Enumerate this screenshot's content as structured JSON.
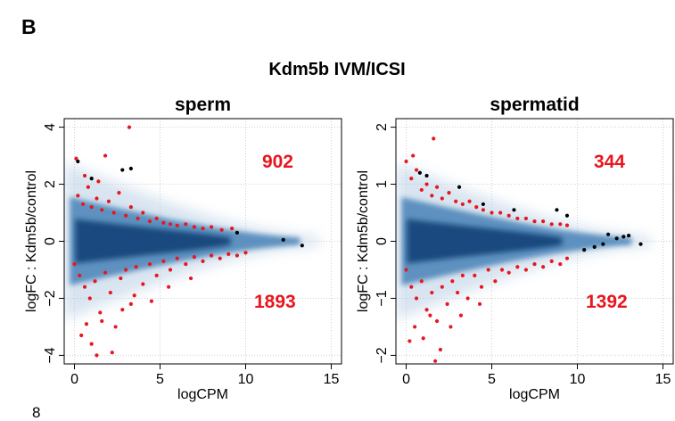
{
  "panel_label": "B",
  "title": "Kdm5b IVM/ICSI",
  "footer": "8",
  "chart_data": [
    {
      "type": "scatter",
      "title": "sperm",
      "xlabel": "logCPM",
      "ylabel": "logFC : Kdm5b/control",
      "xlim": [
        -0.6,
        15.6
      ],
      "ylim": [
        -4.3,
        4.3
      ],
      "xticks": [
        0,
        5,
        10,
        15
      ],
      "yticks": [
        {
          "value": -4,
          "label": "−4"
        },
        {
          "value": -2,
          "label": "−2"
        },
        0,
        2,
        4
      ],
      "grid": true,
      "annotations": [
        902,
        1893
      ],
      "annotation_color": "#e8161f",
      "series": [
        {
          "color": "#e8161f",
          "x": [
            0.2,
            0.5,
            0.8,
            1.0,
            1.3,
            1.6,
            2.0,
            2.3,
            2.6,
            3.0,
            3.3,
            3.7,
            4.0,
            4.4,
            4.8,
            5.2,
            5.6,
            6.0,
            6.5,
            7.0,
            7.5,
            8.0,
            8.6,
            9.2,
            0.1,
            1.8,
            3.2,
            0.6,
            1.4
          ],
          "y": [
            1.6,
            1.3,
            1.9,
            1.2,
            1.5,
            1.1,
            1.4,
            1.0,
            1.7,
            0.9,
            1.2,
            0.8,
            1.0,
            0.7,
            0.8,
            0.65,
            0.6,
            0.55,
            0.6,
            0.5,
            0.45,
            0.5,
            0.4,
            0.45,
            2.9,
            3.0,
            4.0,
            2.3,
            2.1
          ]
        },
        {
          "color": "#e8161f",
          "x": [
            0.0,
            0.3,
            0.6,
            0.9,
            1.2,
            1.5,
            1.8,
            2.1,
            2.4,
            2.7,
            3.0,
            3.3,
            3.6,
            4.0,
            4.4,
            4.8,
            5.2,
            5.6,
            6.0,
            6.5,
            7.0,
            7.5,
            8.0,
            8.5,
            9.0,
            9.5,
            10.0,
            0.4,
            1.0,
            1.6,
            2.2,
            2.8,
            1.3,
            0.7,
            3.5,
            4.5,
            5.5,
            6.8
          ],
          "y": [
            -0.8,
            -1.2,
            -1.6,
            -2.0,
            -1.4,
            -2.5,
            -1.1,
            -1.8,
            -3.0,
            -1.3,
            -1.0,
            -2.2,
            -0.9,
            -1.5,
            -0.8,
            -1.2,
            -0.7,
            -1.0,
            -0.6,
            -0.8,
            -0.55,
            -0.7,
            -0.5,
            -0.6,
            -0.45,
            -0.5,
            -0.4,
            -3.3,
            -3.6,
            -2.8,
            -3.9,
            -2.4,
            -4.0,
            -2.9,
            -1.9,
            -2.1,
            -1.6,
            -1.3
          ]
        },
        {
          "color": "#000000",
          "x": [
            0.2,
            1.0,
            2.8,
            3.3,
            12.2,
            13.3,
            9.5
          ],
          "y": [
            2.8,
            2.2,
            2.5,
            2.55,
            0.05,
            -0.15,
            0.3
          ]
        }
      ]
    },
    {
      "type": "scatter",
      "title": "spermatid",
      "xlabel": "logCPM",
      "ylabel": "logFC : Kdm5b/control",
      "xlim": [
        -0.6,
        15.6
      ],
      "ylim": [
        -2.15,
        2.15
      ],
      "xticks": [
        0,
        5,
        10,
        15
      ],
      "yticks": [
        {
          "value": -2,
          "label": "−2"
        },
        {
          "value": -1,
          "label": "−1"
        },
        0,
        1,
        2
      ],
      "grid": true,
      "annotations": [
        344,
        1392
      ],
      "annotation_color": "#e8161f",
      "series": [
        {
          "color": "#e8161f",
          "x": [
            0.0,
            0.3,
            0.6,
            0.9,
            1.2,
            1.5,
            1.8,
            2.1,
            2.5,
            2.9,
            3.3,
            3.7,
            4.1,
            4.5,
            5.0,
            5.5,
            6.0,
            6.5,
            7.0,
            7.5,
            8.0,
            8.5,
            9.0,
            9.4,
            1.6,
            0.4
          ],
          "y": [
            1.4,
            1.1,
            1.25,
            0.9,
            1.0,
            0.8,
            0.95,
            0.75,
            0.85,
            0.7,
            0.65,
            0.7,
            0.6,
            0.55,
            0.5,
            0.5,
            0.45,
            0.4,
            0.4,
            0.35,
            0.35,
            0.3,
            0.3,
            0.28,
            1.8,
            1.5
          ]
        },
        {
          "color": "#e8161f",
          "x": [
            0.0,
            0.3,
            0.6,
            0.9,
            1.2,
            1.5,
            1.8,
            2.1,
            2.4,
            2.7,
            3.0,
            3.3,
            3.6,
            4.0,
            4.4,
            4.8,
            5.2,
            5.6,
            6.0,
            6.5,
            7.0,
            7.5,
            8.0,
            8.5,
            9.0,
            9.4,
            0.5,
            1.0,
            1.4,
            2.0,
            2.6,
            1.7,
            3.2,
            4.3,
            0.2
          ],
          "y": [
            -0.5,
            -0.8,
            -1.0,
            -0.7,
            -1.2,
            -0.9,
            -1.4,
            -0.8,
            -1.1,
            -0.7,
            -0.9,
            -0.6,
            -1.0,
            -0.6,
            -0.8,
            -0.5,
            -0.7,
            -0.5,
            -0.55,
            -0.45,
            -0.5,
            -0.4,
            -0.45,
            -0.35,
            -0.4,
            -0.3,
            -1.5,
            -1.7,
            -1.3,
            -1.9,
            -1.5,
            -2.1,
            -1.3,
            -1.1,
            -1.75
          ]
        },
        {
          "color": "#000000",
          "x": [
            0.8,
            1.2,
            3.1,
            4.5,
            6.3,
            8.8,
            9.4,
            11.8,
            12.3,
            12.7,
            13.0,
            13.7,
            10.4,
            11.0,
            11.5
          ],
          "y": [
            1.2,
            1.15,
            0.95,
            0.65,
            0.55,
            0.55,
            0.45,
            0.12,
            0.05,
            0.08,
            0.1,
            -0.05,
            -0.15,
            -0.1,
            -0.05
          ]
        }
      ]
    }
  ]
}
